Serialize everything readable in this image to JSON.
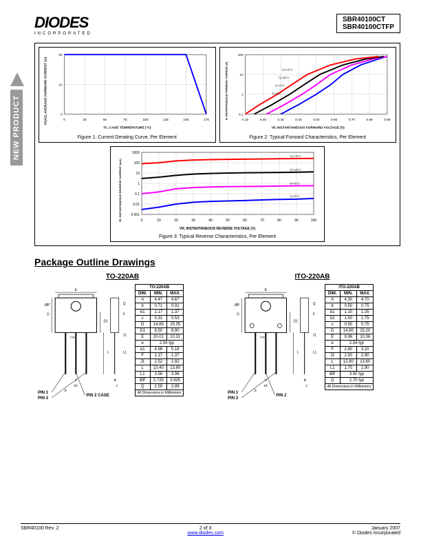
{
  "header": {
    "logo": "DIODES",
    "logo_sub": "INCORPORATED",
    "part1": "SBR40100CT",
    "part2": "SBR40100CTFP"
  },
  "sidebar_text": "NEW PRODUCT",
  "chart1": {
    "type": "line",
    "caption": "Figure 1: Current Derating Curve, Per Element",
    "xlabel": "TC, CASE TEMPERATURE (°C)",
    "ylabel": "IF(AV), AVERAGE FORWARD CURRENT (A)",
    "xlim": [
      0,
      175
    ],
    "xtick_step": 25,
    "ylim": [
      0,
      20
    ],
    "ytick_step": 10,
    "line_color": "#0000ff",
    "data_x": [
      0,
      25,
      50,
      75,
      100,
      125,
      150,
      175
    ],
    "data_y": [
      20,
      20,
      20,
      20,
      20,
      20,
      20,
      0
    ],
    "grid_color": "#cccccc",
    "background_color": "#ffffff",
    "line_width": 2
  },
  "chart2": {
    "type": "line",
    "caption": "Figure 2: Typical Forward Characteristics, Per Element",
    "xlabel": "VF, INSTANTANEOUS FORWARD VOLTAGE (V)",
    "ylabel": "IF, INSTANTANEOUS FORWARD CURRENT (A)",
    "xlim": [
      0.1,
      0.9
    ],
    "xtick_step": 0.1,
    "ylim": [
      0.1,
      100
    ],
    "yscale": "log",
    "grid_color": "#cccccc",
    "background_color": "#ffffff",
    "line_width": 2,
    "series": [
      {
        "label": "Tj=25°C",
        "color": "#0000ff",
        "x": [
          0.3,
          0.4,
          0.5,
          0.58,
          0.65,
          0.75,
          0.85,
          0.9
        ],
        "y": [
          0.1,
          0.3,
          1,
          3,
          10,
          30,
          60,
          80
        ]
      },
      {
        "label": "Tj=75°C",
        "color": "#ff00ff",
        "x": [
          0.22,
          0.32,
          0.42,
          0.5,
          0.58,
          0.7,
          0.82,
          0.9
        ],
        "y": [
          0.1,
          0.3,
          1,
          3,
          10,
          30,
          60,
          80
        ]
      },
      {
        "label": "Tj=125°C",
        "color": "#000000",
        "x": [
          0.15,
          0.25,
          0.35,
          0.43,
          0.52,
          0.65,
          0.78,
          0.88
        ],
        "y": [
          0.1,
          0.3,
          1,
          3,
          10,
          30,
          60,
          80
        ]
      },
      {
        "label": "Tj=175°C",
        "color": "#ff0000",
        "x": [
          0.1,
          0.18,
          0.28,
          0.36,
          0.45,
          0.58,
          0.72,
          0.85
        ],
        "y": [
          0.1,
          0.3,
          1,
          3,
          10,
          30,
          60,
          80
        ]
      }
    ]
  },
  "chart3": {
    "type": "line",
    "caption": "Figure 3: Typical Reverse Characteristics, Per Element",
    "xlabel": "VR, INSTANTANEOUS REVERSE VOLTAGE (V)",
    "ylabel": "IR, INSTANTANEOUS REVERSE CURRENT (mA)",
    "xlim": [
      0,
      100
    ],
    "xtick_step": 10,
    "ylim": [
      0.001,
      1000
    ],
    "yscale": "log",
    "grid_color": "#cccccc",
    "background_color": "#ffffff",
    "line_width": 2,
    "series": [
      {
        "label": "Tj=25°C",
        "color": "#0000ff",
        "x": [
          0,
          10,
          20,
          30,
          40,
          50,
          60,
          70,
          80,
          90,
          100
        ],
        "y": [
          0.003,
          0.005,
          0.01,
          0.015,
          0.018,
          0.02,
          0.022,
          0.025,
          0.028,
          0.03,
          0.035
        ]
      },
      {
        "label": "Tj=75°C",
        "color": "#ff00ff",
        "x": [
          0,
          10,
          20,
          30,
          40,
          50,
          60,
          70,
          80,
          90,
          100
        ],
        "y": [
          0.1,
          0.15,
          0.3,
          0.4,
          0.45,
          0.48,
          0.5,
          0.52,
          0.55,
          0.58,
          0.6
        ]
      },
      {
        "label": "Tj=125°C",
        "color": "#000000",
        "x": [
          0,
          10,
          20,
          30,
          40,
          50,
          60,
          70,
          80,
          90,
          100
        ],
        "y": [
          3,
          4,
          6,
          8,
          9,
          10,
          10.5,
          11,
          11.5,
          12,
          13
        ]
      },
      {
        "label": "Tj=175°C",
        "color": "#ff0000",
        "x": [
          0,
          10,
          20,
          30,
          40,
          50,
          60,
          70,
          80,
          90,
          100
        ],
        "y": [
          80,
          100,
          150,
          180,
          200,
          210,
          220,
          230,
          240,
          250,
          260
        ]
      }
    ]
  },
  "section_title": "Package Outline Drawings",
  "package1": {
    "title": "TO-220AB",
    "table_header": "TO-220AB",
    "cols": [
      "DIM.",
      "MIN.",
      "MAX."
    ],
    "rows": [
      [
        "A",
        "4.47",
        "4.67"
      ],
      [
        "b",
        "0.71",
        "0.91"
      ],
      [
        "b1",
        "1.17",
        "1.37"
      ],
      [
        "c",
        "0.31",
        "0.53"
      ],
      [
        "D",
        "14.65",
        "15.35"
      ],
      [
        "D1",
        "8.50",
        "8.90"
      ],
      [
        "E",
        "10.01",
        "10.31"
      ],
      [
        "e",
        "2.54 typ",
        ""
      ],
      [
        "e1",
        "4.98",
        "5.18"
      ],
      [
        "F",
        "1.17",
        "1.37"
      ],
      [
        "J1",
        "2.52",
        "2.82"
      ],
      [
        "L",
        "13.40",
        "13.80"
      ],
      [
        "L1",
        "3.56",
        "3.96"
      ],
      [
        "ØP",
        "3.735",
        "3.935"
      ],
      [
        "Q",
        "2.59",
        "2.89"
      ]
    ],
    "footer": "All Dimensions in Millimeters",
    "pins": [
      "PIN 1",
      "PIN 2 CASE",
      "PIN 3"
    ]
  },
  "package2": {
    "title": "ITO-220AB",
    "table_header": "ITO-220AB",
    "cols": [
      "DIM.",
      "MIN.",
      "MAX."
    ],
    "rows": [
      [
        "A",
        "4.30",
        "4.70"
      ],
      [
        "b",
        "0.50",
        "0.75"
      ],
      [
        "b1",
        "1.10",
        "1.35"
      ],
      [
        "b2",
        "1.50",
        "1.75"
      ],
      [
        "c",
        "0.50",
        "0.75"
      ],
      [
        "D",
        "14.80",
        "15.20"
      ],
      [
        "E",
        "9.96",
        "10.36"
      ],
      [
        "e",
        "2.54 typ",
        ""
      ],
      [
        "F",
        "2.80",
        "3.20"
      ],
      [
        "J1",
        "2.50",
        "2.90"
      ],
      [
        "L",
        "12.80",
        "13.60"
      ],
      [
        "L1",
        "1.70",
        "1.90"
      ],
      [
        "ØP",
        "3.50 typ",
        ""
      ],
      [
        "Q",
        "2.70 typ",
        ""
      ]
    ],
    "footer": "All Dimensions in Millimeters",
    "pins": [
      "PIN 1",
      "PIN 2",
      "PIN 3"
    ]
  },
  "footer": {
    "left": "SBR40100 Rev. 2",
    "center_page": "2 of 3",
    "center_url": "www.diodes.com",
    "right_date": "January 2007",
    "right_copy": "© Diodes Incorporated"
  }
}
